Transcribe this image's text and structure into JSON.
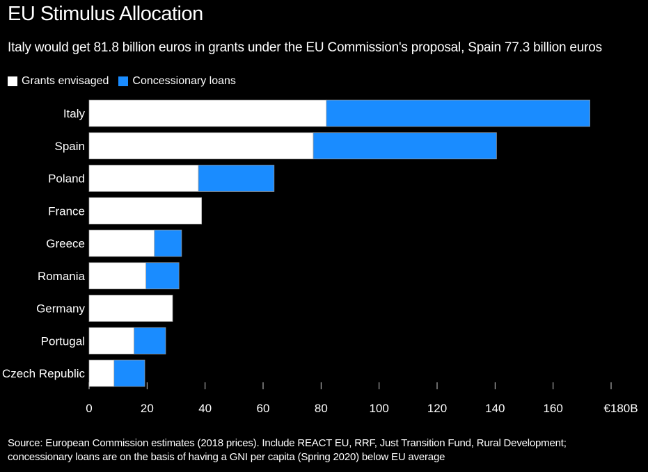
{
  "title": "EU Stimulus Allocation",
  "subtitle": "Italy would get 81.8 billion euros in grants under the EU Commission's proposal, Spain 77.3 billion euros",
  "legend": [
    {
      "label": "Grants envisaged",
      "color": "#ffffff"
    },
    {
      "label": "Concessionary loans",
      "color": "#1a8cff"
    }
  ],
  "source": {
    "line1": "Source: European Commission estimates (2018 prices). Include REACT EU, RRF, Just Transition Fund, Rural Development;",
    "line2": "concessionary loans are on the basis of having a GNI per capita (Spring 2020) below EU average"
  },
  "chart_data": {
    "type": "bar",
    "orientation": "horizontal",
    "stacked": true,
    "categories": [
      "Italy",
      "Spain",
      "Poland",
      "France",
      "Greece",
      "Romania",
      "Germany",
      "Portugal",
      "Czech Republic"
    ],
    "series": [
      {
        "name": "Grants envisaged",
        "color": "#ffffff",
        "values": [
          81.8,
          77.3,
          37.7,
          38.8,
          22.5,
          19.6,
          28.8,
          15.5,
          8.6
        ]
      },
      {
        "name": "Concessionary loans",
        "color": "#1a8cff",
        "values": [
          90.9,
          63.2,
          26.1,
          0,
          9.4,
          11.4,
          0,
          10.9,
          10.6
        ]
      }
    ],
    "xlim": [
      0,
      180
    ],
    "xticks": [
      0,
      20,
      40,
      60,
      80,
      100,
      120,
      140,
      160,
      180
    ],
    "xtick_labels": [
      "0",
      "20",
      "40",
      "60",
      "80",
      "100",
      "120",
      "140",
      "160",
      "€180B"
    ],
    "grid": false,
    "legend_position": "top-left"
  }
}
